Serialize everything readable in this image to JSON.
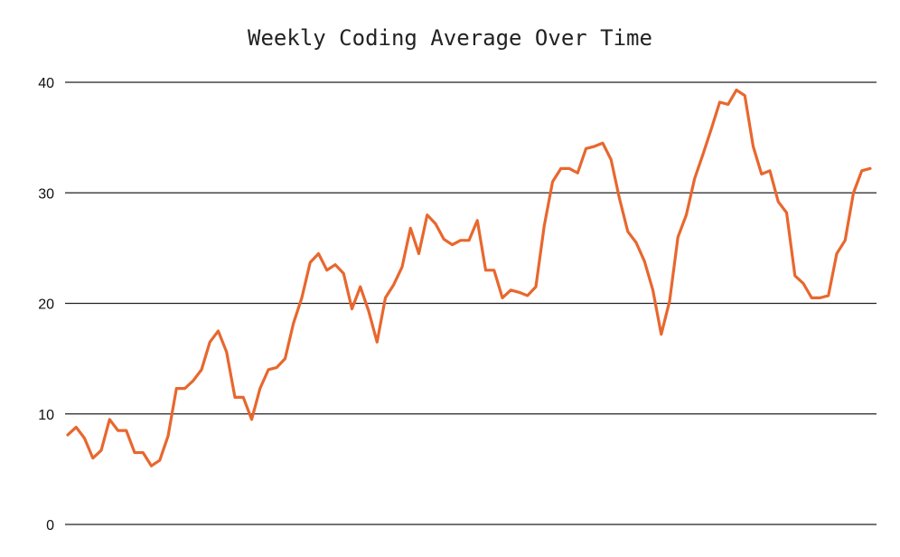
{
  "chart_data": {
    "type": "line",
    "title": "Weekly Coding Average Over Time",
    "xlabel": "",
    "ylabel": "",
    "ylim": [
      0,
      40
    ],
    "y_ticks": [
      0,
      10,
      20,
      30,
      40
    ],
    "y_tick_labels": [
      "0",
      "10",
      "20",
      "30",
      "40"
    ],
    "grid": true,
    "legend": "none",
    "line_color": "#e8672e",
    "grid_color": "#222222",
    "series": [
      {
        "values": [
          8.1,
          8.8,
          7.8,
          6.0,
          6.7,
          9.5,
          8.5,
          8.5,
          6.5,
          6.5,
          5.3,
          5.8,
          8.0,
          12.3,
          12.3,
          13.0,
          14.0,
          16.5,
          17.5,
          15.6,
          11.5,
          11.5,
          9.5,
          12.3,
          14.0,
          14.2,
          15.0,
          18.2,
          20.5,
          23.7,
          24.5,
          23.0,
          23.5,
          22.7,
          19.5,
          21.5,
          19.3,
          16.5,
          20.5,
          21.7,
          23.3,
          26.8,
          24.5,
          28.0,
          27.2,
          25.8,
          25.3,
          25.7,
          25.7,
          27.5,
          23.0,
          23.0,
          20.5,
          21.2,
          21.0,
          20.7,
          21.5,
          27.0,
          31.0,
          32.2,
          32.2,
          31.8,
          34.0,
          34.2,
          34.5,
          33.0,
          29.5,
          26.5,
          25.5,
          23.8,
          21.2,
          17.2,
          20.2,
          26.0,
          28.0,
          31.3,
          33.5,
          35.8,
          38.2,
          38.0,
          39.3,
          38.8,
          34.2,
          31.7,
          32.0,
          29.2,
          28.2,
          22.5,
          21.8,
          20.5,
          20.5,
          20.7,
          24.5,
          25.7,
          30.0,
          32.0,
          32.2
        ]
      }
    ]
  }
}
